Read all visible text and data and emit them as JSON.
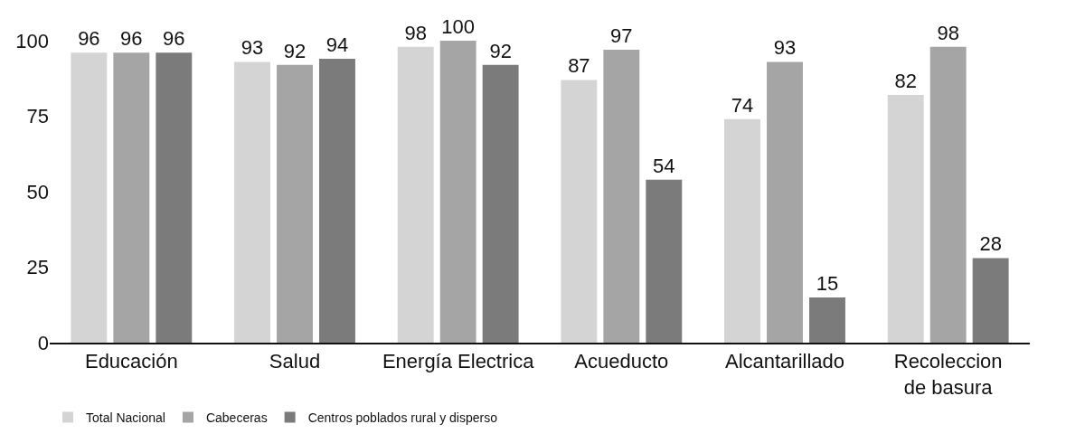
{
  "chart_data": {
    "type": "bar",
    "categories": [
      "Educación",
      "Salud",
      "Energía Electrica",
      "Acueducto",
      "Alcantarillado",
      "Recoleccion de basura"
    ],
    "series": [
      {
        "name": "Total Nacional",
        "color": "#d4d4d4",
        "values": [
          96,
          93,
          98,
          87,
          74,
          82
        ]
      },
      {
        "name": "Cabeceras",
        "color": "#a5a5a5",
        "values": [
          96,
          92,
          100,
          97,
          93,
          98
        ]
      },
      {
        "name": "Centros poblados rural y disperso",
        "color": "#7b7b7b",
        "values": [
          96,
          94,
          92,
          54,
          15,
          28
        ]
      }
    ],
    "ylim": [
      0,
      100
    ],
    "yticks": [
      0,
      25,
      50,
      75,
      100
    ],
    "grid": false,
    "legend": "bottom left",
    "data_labels": true
  }
}
